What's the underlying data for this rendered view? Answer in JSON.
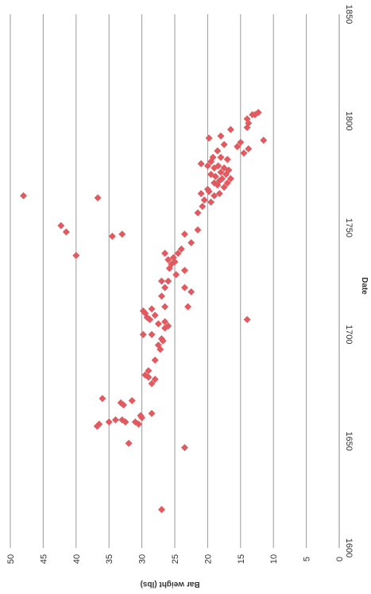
{
  "chart_data": {
    "type": "scatter",
    "title": "",
    "xlabel": "Date",
    "ylabel": "Bar weight (lbs)",
    "xlim": [
      1600,
      1850
    ],
    "ylim": [
      0,
      50
    ],
    "x_ticks": [
      "1600",
      "1650",
      "1700",
      "1750",
      "1800",
      "1850"
    ],
    "y_ticks": [
      "0",
      "5",
      "10",
      "15",
      "20",
      "25",
      "30",
      "35",
      "40",
      "45",
      "50"
    ],
    "grid": "horizontal",
    "orientation": "rotated 90 degrees clockwise",
    "marker": "diamond",
    "color": "#e05a5f",
    "series": [
      {
        "points": [
          [
            1618,
            27.0
          ],
          [
            1647,
            23.5
          ],
          [
            1649,
            32.0
          ],
          [
            1657,
            36.8
          ],
          [
            1658,
            36.5
          ],
          [
            1659,
            35.0
          ],
          [
            1659,
            32.5
          ],
          [
            1660,
            34.0
          ],
          [
            1660,
            33.0
          ],
          [
            1659,
            31.0
          ],
          [
            1658,
            30.5
          ],
          [
            1661,
            30.0
          ],
          [
            1662,
            30.2
          ],
          [
            1663,
            28.5
          ],
          [
            1667,
            32.8
          ],
          [
            1668,
            33.2
          ],
          [
            1669,
            31.5
          ],
          [
            1670,
            36.0
          ],
          [
            1677,
            28.5
          ],
          [
            1679,
            28.0
          ],
          [
            1680,
            29.0
          ],
          [
            1681,
            29.5
          ],
          [
            1683,
            29.0
          ],
          [
            1688,
            28.0
          ],
          [
            1693,
            27.2
          ],
          [
            1695,
            27.5
          ],
          [
            1697,
            26.8
          ],
          [
            1698,
            27.0
          ],
          [
            1700,
            28.5
          ],
          [
            1700,
            29.8
          ],
          [
            1703,
            26.5
          ],
          [
            1704,
            26.0
          ],
          [
            1705,
            27.5
          ],
          [
            1706,
            26.5
          ],
          [
            1707,
            14.0
          ],
          [
            1707,
            28.8
          ],
          [
            1708,
            29.2
          ],
          [
            1709,
            28.0
          ],
          [
            1710,
            29.5
          ],
          [
            1711,
            29.8
          ],
          [
            1712,
            28.5
          ],
          [
            1713,
            26.5
          ],
          [
            1713,
            23.0
          ],
          [
            1718,
            27.0
          ],
          [
            1720,
            22.5
          ],
          [
            1722,
            23.5
          ],
          [
            1722,
            26.5
          ],
          [
            1725,
            26.0
          ],
          [
            1725,
            27.0
          ],
          [
            1728,
            24.8
          ],
          [
            1730,
            23.5
          ],
          [
            1731,
            25.8
          ],
          [
            1733,
            25.5
          ],
          [
            1734,
            25.0
          ],
          [
            1735,
            26.0
          ],
          [
            1736,
            25.2
          ],
          [
            1737,
            40.0
          ],
          [
            1738,
            24.5
          ],
          [
            1738,
            26.5
          ],
          [
            1740,
            24.0
          ],
          [
            1743,
            22.5
          ],
          [
            1746,
            34.5
          ],
          [
            1747,
            33.0
          ],
          [
            1747,
            23.5
          ],
          [
            1748,
            41.5
          ],
          [
            1749,
            21.5
          ],
          [
            1751,
            42.3
          ],
          [
            1757,
            21.5
          ],
          [
            1760,
            20.8
          ],
          [
            1762,
            19.5
          ],
          [
            1763,
            20.5
          ],
          [
            1764,
            36.7
          ],
          [
            1765,
            48.0
          ],
          [
            1765,
            19.0
          ],
          [
            1766,
            21.0
          ],
          [
            1766,
            18.2
          ],
          [
            1767,
            19.8
          ],
          [
            1768,
            20.0
          ],
          [
            1769,
            17.5
          ],
          [
            1770,
            18.5
          ],
          [
            1771,
            17.0
          ],
          [
            1771,
            19.0
          ],
          [
            1772,
            18.2
          ],
          [
            1773,
            17.8
          ],
          [
            1773,
            16.5
          ],
          [
            1774,
            18.8
          ],
          [
            1775,
            19.5
          ],
          [
            1775,
            17.2
          ],
          [
            1776,
            18.0
          ],
          [
            1777,
            16.8
          ],
          [
            1778,
            19.0
          ],
          [
            1778,
            17.5
          ],
          [
            1779,
            20.0
          ],
          [
            1779,
            18.4
          ],
          [
            1780,
            21.0
          ],
          [
            1781,
            19.5
          ],
          [
            1782,
            17.0
          ],
          [
            1783,
            18.0
          ],
          [
            1783,
            19.2
          ],
          [
            1785,
            14.5
          ],
          [
            1786,
            18.5
          ],
          [
            1787,
            13.8
          ],
          [
            1788,
            15.5
          ],
          [
            1789,
            17.5
          ],
          [
            1790,
            15.0
          ],
          [
            1791,
            11.5
          ],
          [
            1792,
            19.8
          ],
          [
            1793,
            18.0
          ],
          [
            1796,
            16.5
          ],
          [
            1797,
            14.0
          ],
          [
            1799,
            13.8
          ],
          [
            1801,
            14.0
          ],
          [
            1803,
            13.2
          ],
          [
            1803,
            12.8
          ],
          [
            1804,
            12.3
          ]
        ]
      }
    ]
  }
}
